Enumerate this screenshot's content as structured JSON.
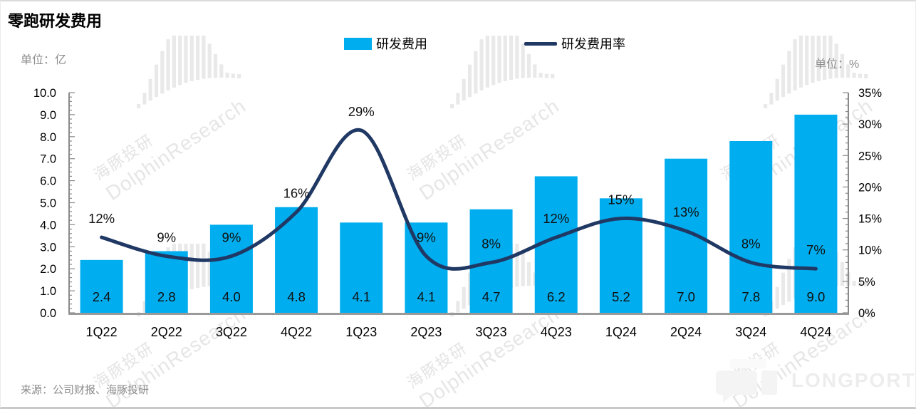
{
  "header": {
    "title": "零跑研发费用",
    "unit_left": "单位：亿",
    "unit_right": "单位：%"
  },
  "chart_data": {
    "type": "bar-line-combo",
    "title": "零跑研发费用",
    "categories": [
      "1Q22",
      "2Q22",
      "3Q22",
      "4Q22",
      "1Q23",
      "2Q23",
      "3Q23",
      "4Q23",
      "1Q24",
      "2Q24",
      "3Q24",
      "4Q24"
    ],
    "series": [
      {
        "name": "研发费用",
        "type": "bar",
        "axis": "left",
        "color": "#00ADEF",
        "values": [
          2.4,
          2.8,
          4.0,
          4.8,
          4.1,
          4.1,
          4.7,
          6.2,
          5.2,
          7.0,
          7.8,
          9.0
        ],
        "labels": [
          "2.4",
          "2.8",
          "4.0",
          "4.8",
          "4.1",
          "4.1",
          "4.7",
          "6.2",
          "5.2",
          "7.0",
          "7.8",
          "9.0"
        ]
      },
      {
        "name": "研发费用率",
        "type": "line",
        "axis": "right",
        "color": "#203864",
        "values": [
          12,
          9,
          9,
          16,
          29,
          9,
          8,
          12,
          15,
          13,
          8,
          7
        ],
        "labels": [
          "12%",
          "9%",
          "9%",
          "16%",
          "29%",
          "9%",
          "8%",
          "12%",
          "15%",
          "13%",
          "8%",
          "7%"
        ]
      }
    ],
    "left_axis": {
      "title": "单位：亿",
      "min": 0,
      "max": 10,
      "major_step": 1,
      "minor_step": 0.2,
      "labels": [
        "10.0",
        "9.0",
        "8.0",
        "7.0",
        "6.0",
        "5.0",
        "4.0",
        "3.0",
        "2.0",
        "1.0",
        "0.0"
      ]
    },
    "right_axis": {
      "title": "单位：%",
      "min": 0,
      "max": 35,
      "major_step": 5,
      "minor_step": 1,
      "labels": [
        "35%",
        "30%",
        "25%",
        "20%",
        "15%",
        "10%",
        "5%",
        "0%"
      ]
    },
    "grid": false,
    "legend_position": "top"
  },
  "footer": {
    "source": "来源：公司财报、海豚投研",
    "brand": "LONGPORT"
  },
  "watermark": {
    "text_cn": "海豚投研",
    "text_en": "DolphinResearch"
  },
  "colors": {
    "bar": "#00ADEF",
    "line": "#203864",
    "axis": "#8A8A8A",
    "muted_text": "#8C8C8C"
  }
}
